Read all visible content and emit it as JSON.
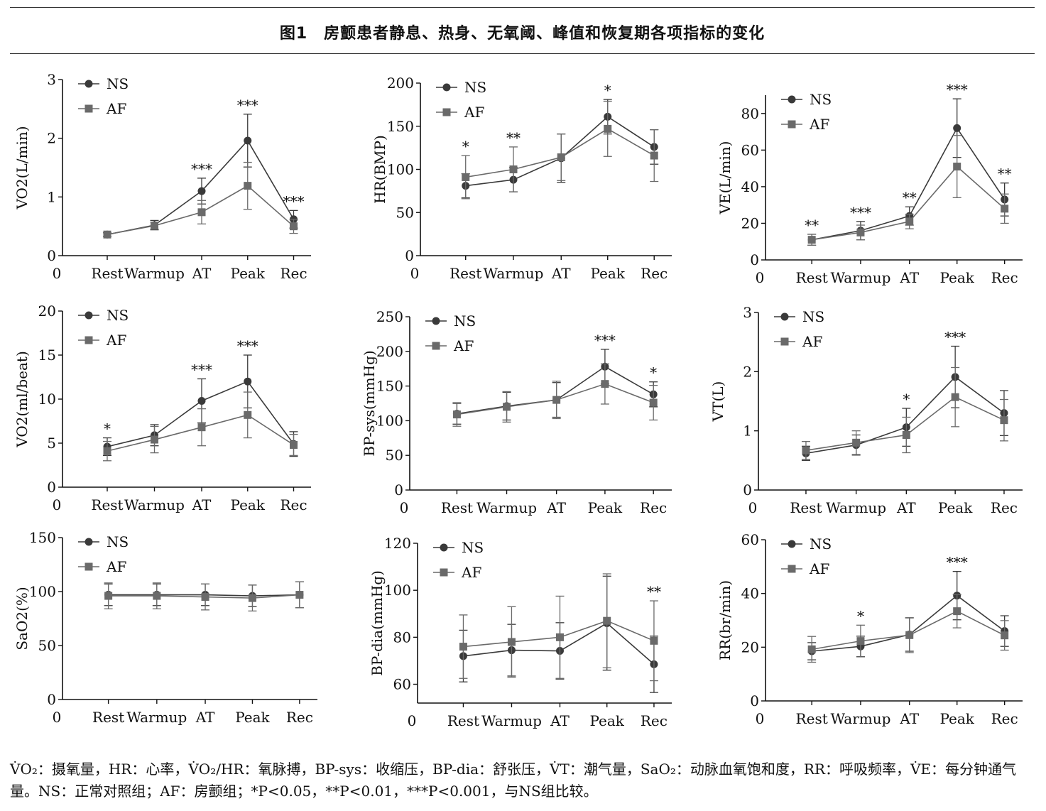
{
  "figure": {
    "title": "图1　房颤患者静息、热身、无氧阈、峰值和恢复期各项指标的变化",
    "footnote_line1": "V̇O₂：摄氧量，HR：心率，V̇O₂/HR：氧脉搏，BP-sys：收缩压，BP-dia：舒张压，V̇T：潮气量，SaO₂：动脉血氧饱和度，RR：呼吸频率，V̇E：每分钟通气",
    "footnote_line2": "量。NS：正常对照组；AF：房颤组；*P<0.05，**P<0.01，***P<0.001，与NS组比较。"
  },
  "colors": {
    "ns": "#3a3a3a",
    "af": "#6a6a6a",
    "axis": "#111111"
  },
  "chart_data": [
    {
      "type": "line",
      "ylabel": "VO2(L/min)",
      "ylim": [
        0,
        3
      ],
      "yticks": [
        0,
        1,
        2,
        3
      ],
      "categories": [
        "Rest",
        "Warmup",
        "AT",
        "Peak",
        "Rec"
      ],
      "x_origin_label": "0",
      "series": [
        {
          "name": "NS",
          "marker": "circle",
          "values": [
            0.36,
            0.52,
            1.1,
            1.96,
            0.62
          ],
          "errors": [
            0.03,
            0.08,
            0.22,
            0.45,
            0.15
          ]
        },
        {
          "name": "AF",
          "marker": "square",
          "values": [
            0.36,
            0.51,
            0.74,
            1.19,
            0.5
          ],
          "errors": [
            0.03,
            0.06,
            0.2,
            0.4,
            0.12
          ]
        }
      ],
      "significance": [
        "",
        "",
        "***",
        "***",
        "***"
      ]
    },
    {
      "type": "line",
      "ylabel": "HR(BMP)",
      "ylim": [
        0,
        200
      ],
      "yticks": [
        0,
        50,
        100,
        150,
        200
      ],
      "categories": [
        "Rest",
        "Warmup",
        "AT",
        "Peak",
        "Rec"
      ],
      "x_origin_label": "0",
      "series": [
        {
          "name": "NS",
          "marker": "circle",
          "values": [
            81,
            88,
            113,
            161,
            126
          ],
          "errors": [
            14,
            14,
            28,
            20,
            20
          ]
        },
        {
          "name": "AF",
          "marker": "square",
          "values": [
            91,
            100,
            114,
            147,
            116
          ],
          "errors": [
            25,
            26,
            27,
            32,
            30
          ]
        }
      ],
      "significance": [
        "*",
        "**",
        "",
        "*",
        ""
      ]
    },
    {
      "type": "line",
      "ylabel": "VE(L/min)",
      "ylim": [
        0,
        90
      ],
      "yticks": [
        0,
        20,
        40,
        60,
        80
      ],
      "categories": [
        "Rest",
        "Warmup",
        "AT",
        "Peak",
        "Rec"
      ],
      "x_origin_label": "0",
      "series": [
        {
          "name": "NS",
          "marker": "circle",
          "values": [
            11,
            16,
            24,
            72,
            33
          ],
          "errors": [
            3,
            5,
            5,
            16,
            9
          ]
        },
        {
          "name": "AF",
          "marker": "square",
          "values": [
            11,
            15,
            21,
            51,
            28
          ],
          "errors": [
            3,
            4,
            4,
            17,
            8
          ]
        }
      ],
      "significance": [
        "**",
        "***",
        "**",
        "***",
        "**"
      ]
    },
    {
      "type": "line",
      "ylabel": "VO2(ml/beat)",
      "ylim": [
        0,
        20
      ],
      "yticks": [
        0,
        5,
        10,
        15,
        20
      ],
      "categories": [
        "Rest",
        "Warmup",
        "AT",
        "Peak",
        "Rec"
      ],
      "x_origin_label": "0",
      "series": [
        {
          "name": "NS",
          "marker": "circle",
          "values": [
            4.6,
            5.9,
            9.8,
            12.0,
            4.9
          ],
          "errors": [
            1.0,
            1.2,
            2.5,
            3.0,
            1.4
          ]
        },
        {
          "name": "AF",
          "marker": "square",
          "values": [
            4.1,
            5.4,
            6.8,
            8.2,
            4.8
          ],
          "errors": [
            1.1,
            1.5,
            2.1,
            2.6,
            1.2
          ]
        }
      ],
      "significance": [
        "*",
        "",
        "***",
        "***",
        ""
      ]
    },
    {
      "type": "line",
      "ylabel": "BP-sys(mmHg)",
      "ylim": [
        0,
        250
      ],
      "yticks": [
        0,
        50,
        100,
        150,
        200,
        250
      ],
      "categories": [
        "Rest",
        "Warmup",
        "AT",
        "Peak",
        "Rec"
      ],
      "x_origin_label": "0",
      "series": [
        {
          "name": "NS",
          "marker": "circle",
          "values": [
            110,
            121,
            130,
            178,
            138
          ],
          "errors": [
            15,
            20,
            25,
            25,
            18
          ]
        },
        {
          "name": "AF",
          "marker": "square",
          "values": [
            109,
            120,
            130,
            153,
            126
          ],
          "errors": [
            17,
            22,
            27,
            29,
            25
          ]
        }
      ],
      "significance": [
        "",
        "",
        "",
        "***",
        "*"
      ]
    },
    {
      "type": "line",
      "ylabel": "VT(L)",
      "ylim": [
        0,
        3
      ],
      "yticks": [
        0,
        1,
        2,
        3
      ],
      "categories": [
        "Rest",
        "Warmup",
        "AT",
        "Peak",
        "Rec"
      ],
      "x_origin_label": "0",
      "series": [
        {
          "name": "NS",
          "marker": "circle",
          "values": [
            0.62,
            0.76,
            1.06,
            1.91,
            1.3
          ],
          "errors": [
            0.12,
            0.17,
            0.32,
            0.52,
            0.38
          ]
        },
        {
          "name": "AF",
          "marker": "square",
          "values": [
            0.67,
            0.8,
            0.93,
            1.57,
            1.18
          ],
          "errors": [
            0.15,
            0.2,
            0.3,
            0.5,
            0.35
          ]
        }
      ],
      "significance": [
        "",
        "",
        "*",
        "***",
        ""
      ]
    },
    {
      "type": "line",
      "ylabel": "SaO2(%)",
      "ylim": [
        0,
        150
      ],
      "yticks": [
        0,
        50,
        100,
        150
      ],
      "categories": [
        "Rest",
        "Warmup",
        "AT",
        "Peak",
        "Rec"
      ],
      "x_origin_label": "0",
      "series": [
        {
          "name": "NS",
          "marker": "circle",
          "values": [
            97,
            97,
            97,
            96,
            97
          ],
          "errors": [
            10,
            10,
            10,
            10,
            12
          ]
        },
        {
          "name": "AF",
          "marker": "square",
          "values": [
            96,
            96,
            95,
            94,
            97
          ],
          "errors": [
            12,
            12,
            12,
            12,
            12
          ]
        }
      ],
      "significance": [
        "",
        "",
        "",
        "",
        ""
      ]
    },
    {
      "type": "line",
      "ylabel": "BP-dia(mmHg)",
      "ylim": [
        52,
        120
      ],
      "yticks": [
        60,
        80,
        100,
        120
      ],
      "categories": [
        "Rest",
        "Warmup",
        "AT",
        "Peak",
        "Rec"
      ],
      "x_origin_label": "0",
      "series": [
        {
          "name": "NS",
          "marker": "circle",
          "values": [
            72,
            74.5,
            74.2,
            86,
            68.5
          ],
          "errors": [
            11,
            11,
            12,
            20,
            12
          ]
        },
        {
          "name": "AF",
          "marker": "square",
          "values": [
            76,
            78,
            80,
            87,
            78.5
          ],
          "errors": [
            13.5,
            15,
            17.5,
            20,
            17
          ]
        }
      ],
      "significance": [
        "",
        "",
        "",
        "",
        "**"
      ]
    },
    {
      "type": "line",
      "ylabel": "RR(br/min)",
      "ylim": [
        0,
        60
      ],
      "yticks": [
        0,
        20,
        40,
        60
      ],
      "categories": [
        "Rest",
        "Warmup",
        "AT",
        "Peak",
        "Rec"
      ],
      "x_origin_label": "0",
      "series": [
        {
          "name": "NS",
          "marker": "circle",
          "values": [
            18.5,
            20.3,
            24.7,
            39.2,
            26.0
          ],
          "errors": [
            3.2,
            3.8,
            6.2,
            9.0,
            5.7
          ]
        },
        {
          "name": "AF",
          "marker": "square",
          "values": [
            19.2,
            22.3,
            24.5,
            33.4,
            24.4
          ],
          "errors": [
            4.8,
            5.9,
            6.5,
            6.2,
            5.5
          ]
        }
      ],
      "significance": [
        "",
        "*",
        "",
        "***",
        ""
      ]
    }
  ]
}
